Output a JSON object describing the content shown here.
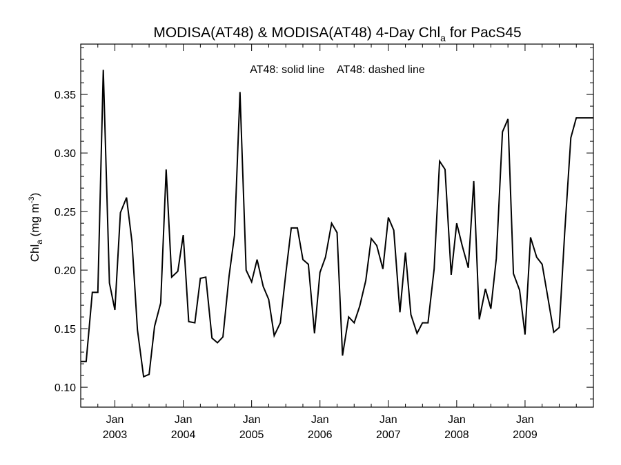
{
  "chart_data": {
    "type": "line",
    "title": {
      "main": "MODISA(AT48) & MODISA(AT48) 4-Day Chl",
      "sub": "a",
      "suffix": " for PacS45"
    },
    "legend": {
      "solid": "AT48: solid line",
      "dashed": "AT48: dashed line",
      "placement": "top-center"
    },
    "ylabel": {
      "main": "Chl",
      "sub": "a",
      "units_pre": " (mg m",
      "units_sup": "-3",
      "units_post": ")"
    },
    "xlim": [
      2002.5,
      2010.0
    ],
    "ylim": [
      0.083,
      0.393
    ],
    "yticks": [
      {
        "value": 0.1,
        "label": "0.10"
      },
      {
        "value": 0.15,
        "label": "0.15"
      },
      {
        "value": 0.2,
        "label": "0.20"
      },
      {
        "value": 0.25,
        "label": "0.25"
      },
      {
        "value": 0.3,
        "label": "0.30"
      },
      {
        "value": 0.35,
        "label": "0.35"
      }
    ],
    "xticks": [
      {
        "value": 2003.0,
        "month": "Jan",
        "year": "2003"
      },
      {
        "value": 2004.0,
        "month": "Jan",
        "year": "2004"
      },
      {
        "value": 2005.0,
        "month": "Jan",
        "year": "2005"
      },
      {
        "value": 2006.0,
        "month": "Jan",
        "year": "2006"
      },
      {
        "value": 2007.0,
        "month": "Jan",
        "year": "2007"
      },
      {
        "value": 2008.0,
        "month": "Jan",
        "year": "2008"
      },
      {
        "value": 2009.0,
        "month": "Jan",
        "year": "2009"
      }
    ],
    "grid": false,
    "series": [
      {
        "style": "solid",
        "color": "#000000",
        "x": [
          2002.5,
          2002.58,
          2002.67,
          2002.75,
          2002.83,
          2002.92,
          2003.0,
          2003.08,
          2003.17,
          2003.25,
          2003.33,
          2003.42,
          2003.5,
          2003.58,
          2003.67,
          2003.75,
          2003.83,
          2003.92,
          2004.0,
          2004.08,
          2004.17,
          2004.25,
          2004.33,
          2004.42,
          2004.5,
          2004.58,
          2004.67,
          2004.75,
          2004.83,
          2004.92,
          2005.0,
          2005.08,
          2005.17,
          2005.25,
          2005.33,
          2005.42,
          2005.5,
          2005.58,
          2005.67,
          2005.75,
          2005.83,
          2005.92,
          2006.0,
          2006.08,
          2006.17,
          2006.25,
          2006.33,
          2006.42,
          2006.5,
          2006.58,
          2006.67,
          2006.75,
          2006.83,
          2006.92,
          2007.0,
          2007.08,
          2007.17,
          2007.25,
          2007.33,
          2007.42,
          2007.5,
          2007.58,
          2007.67,
          2007.75,
          2007.83,
          2007.92,
          2008.0,
          2008.08,
          2008.17,
          2008.25,
          2008.33,
          2008.42,
          2008.5,
          2008.58,
          2008.67,
          2008.75,
          2008.83,
          2008.92,
          2009.0,
          2009.08,
          2009.17,
          2009.25,
          2009.33,
          2009.42,
          2009.5,
          2009.58,
          2009.67,
          2009.75,
          2009.83,
          2009.92,
          2010.0
        ],
        "y": [
          0.122,
          0.122,
          0.181,
          0.181,
          0.371,
          0.189,
          0.166,
          0.249,
          0.262,
          0.224,
          0.149,
          0.109,
          0.111,
          0.152,
          0.172,
          0.286,
          0.194,
          0.199,
          0.23,
          0.156,
          0.155,
          0.193,
          0.194,
          0.142,
          0.138,
          0.143,
          0.195,
          0.23,
          0.352,
          0.2,
          0.19,
          0.209,
          0.186,
          0.175,
          0.144,
          0.155,
          0.197,
          0.236,
          0.236,
          0.209,
          0.205,
          0.146,
          0.198,
          0.211,
          0.24,
          0.232,
          0.127,
          0.16,
          0.155,
          0.169,
          0.191,
          0.227,
          0.221,
          0.201,
          0.245,
          0.234,
          0.164,
          0.215,
          0.162,
          0.146,
          0.155,
          0.155,
          0.201,
          0.293,
          0.286,
          0.196,
          0.24,
          0.221,
          0.202,
          0.276,
          0.158,
          0.184,
          0.167,
          0.21,
          0.318,
          0.329,
          0.197,
          0.183,
          0.145,
          0.228,
          0.211,
          0.205,
          0.178,
          0.147,
          0.151,
          0.232,
          0.313,
          0.33,
          0.33,
          0.33,
          0.33
        ]
      }
    ]
  }
}
